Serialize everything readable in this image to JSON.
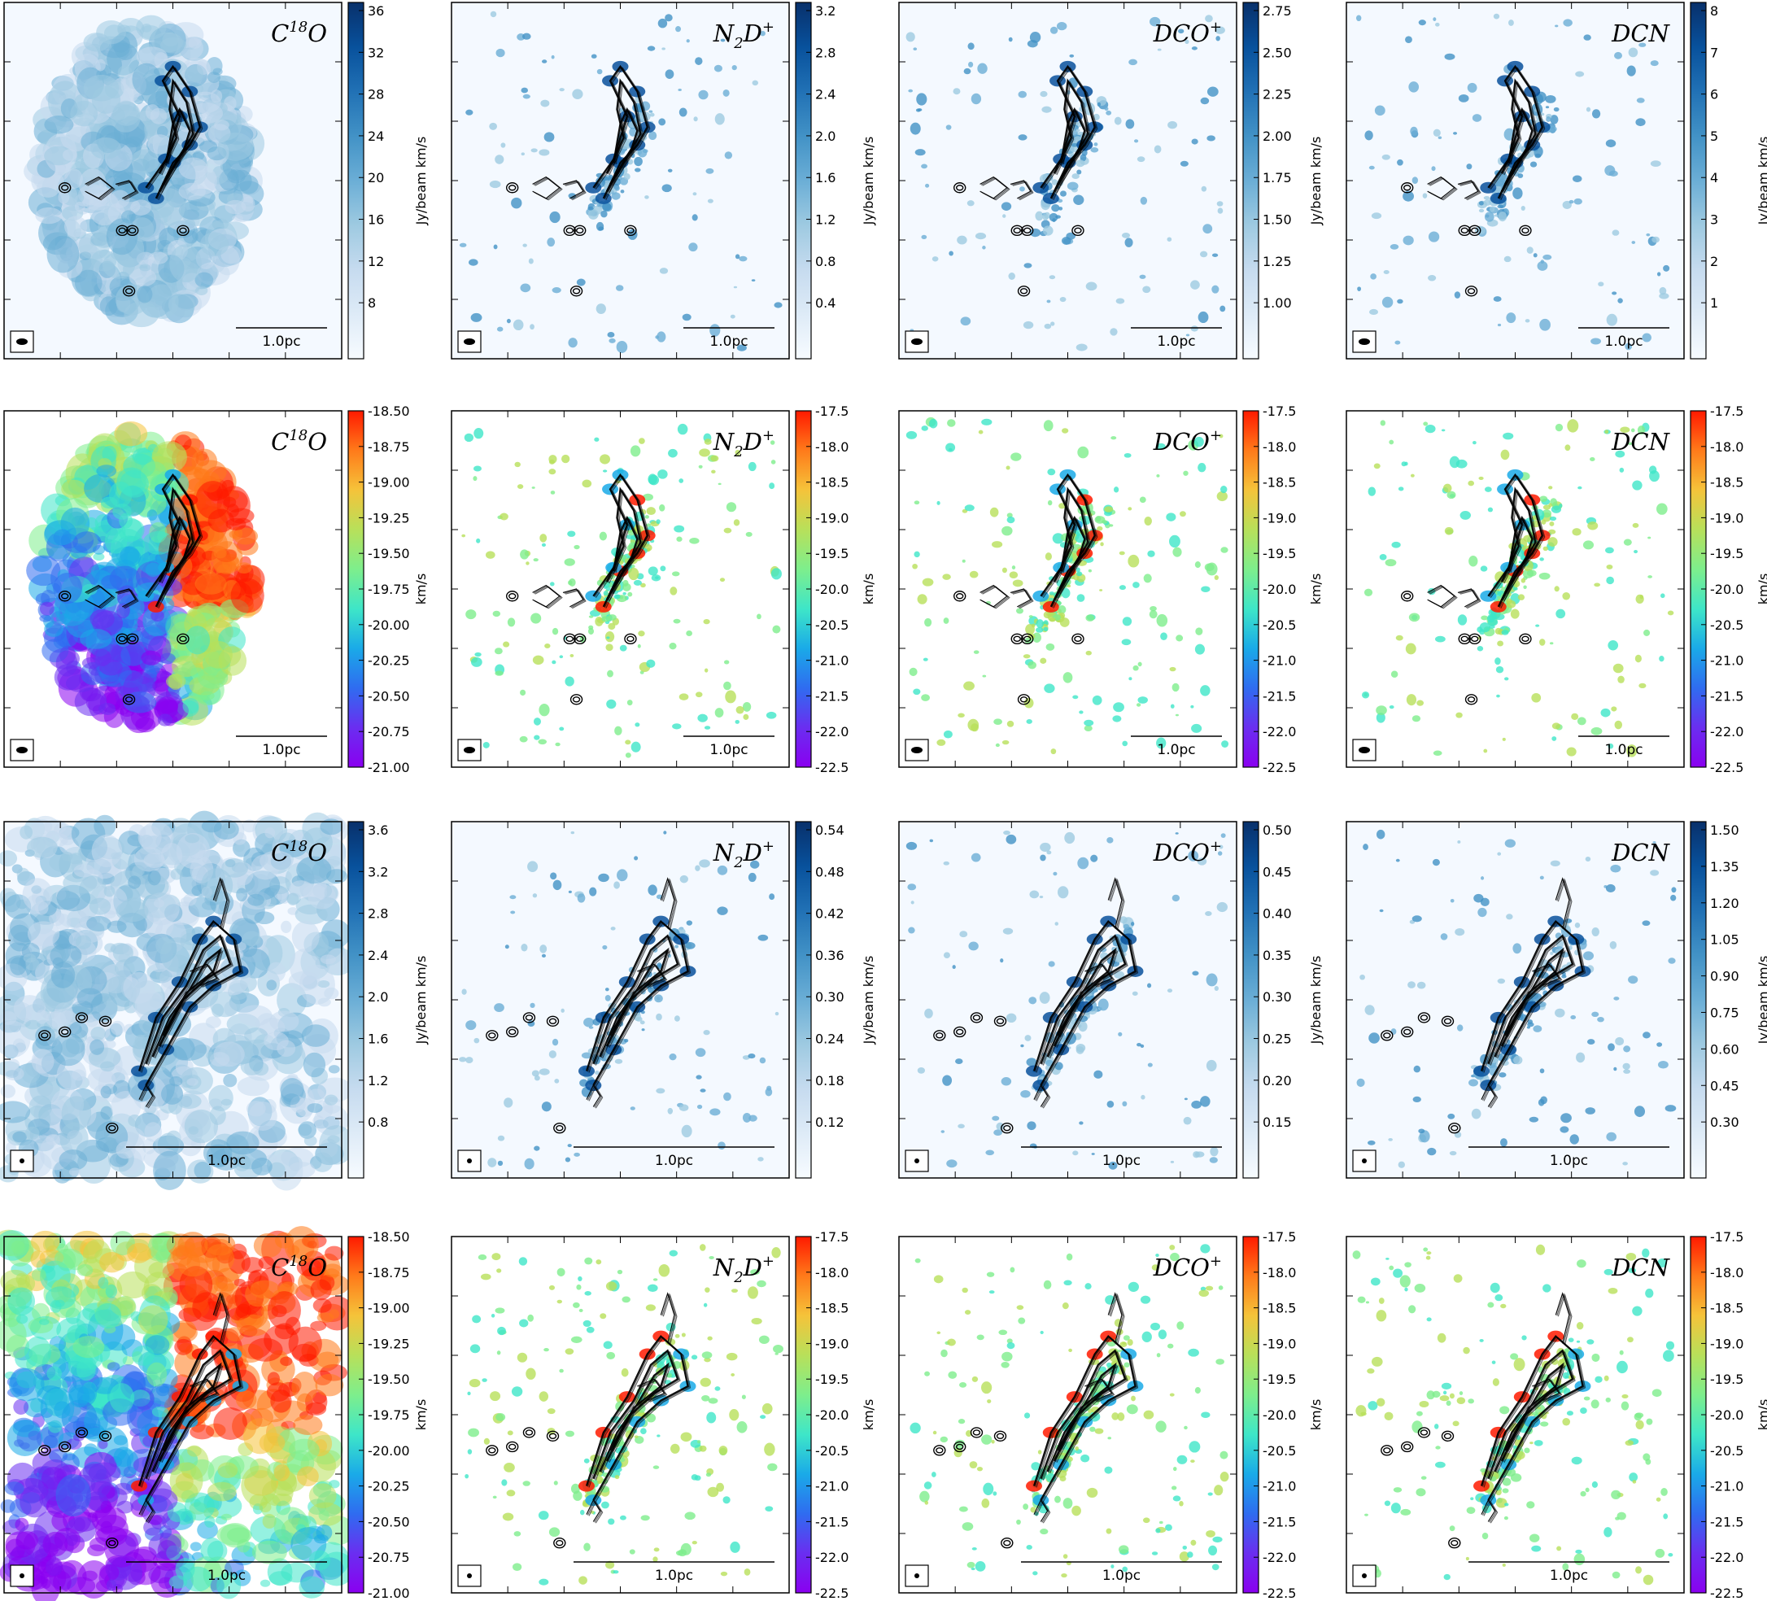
{
  "chart_data": {
    "type": "heatmap",
    "description": "4x4 grid of molecular-line maps (moment 0 and moment 1) with black continuum contours",
    "rows": [
      {
        "kind": "moment0",
        "colormap": "blues",
        "unit_label": "Jy/beam km/s",
        "panels": [
          {
            "molecule": "C18O",
            "label_main": "C",
            "label_sup": "18",
            "label_tail": "O",
            "cbar_ticks": [
              "36",
              "32",
              "28",
              "24",
              "20",
              "16",
              "12",
              "8"
            ]
          },
          {
            "molecule": "N2D+",
            "label_main": "N",
            "label_sub": "2",
            "label_tail": "D",
            "label_sup": "+",
            "cbar_ticks": [
              "3.2",
              "2.8",
              "2.4",
              "2.0",
              "1.6",
              "1.2",
              "0.8",
              "0.4"
            ]
          },
          {
            "molecule": "DCO+",
            "label_main": "DCO",
            "label_sup": "+",
            "cbar_ticks": [
              "2.75",
              "2.50",
              "2.25",
              "2.00",
              "1.75",
              "1.50",
              "1.25",
              "1.00"
            ]
          },
          {
            "molecule": "DCN",
            "label_main": "DCN",
            "cbar_ticks": [
              "8",
              "7",
              "6",
              "5",
              "4",
              "3",
              "2",
              "1"
            ]
          }
        ],
        "scale_bar": "1.0pc"
      },
      {
        "kind": "moment1",
        "colormap": "rainbow",
        "unit_label": "km/s",
        "panels": [
          {
            "molecule": "C18O",
            "label_main": "C",
            "label_sup": "18",
            "label_tail": "O",
            "cbar_ticks": [
              "-18.50",
              "-18.75",
              "-19.00",
              "-19.25",
              "-19.50",
              "-19.75",
              "-20.00",
              "-20.25",
              "-20.50",
              "-20.75",
              "-21.00"
            ]
          },
          {
            "molecule": "N2D+",
            "label_main": "N",
            "label_sub": "2",
            "label_tail": "D",
            "label_sup": "+",
            "cbar_ticks": [
              "-17.5",
              "-18.0",
              "-18.5",
              "-19.0",
              "-19.5",
              "-20.0",
              "-20.5",
              "-21.0",
              "-21.5",
              "-22.0",
              "-22.5"
            ]
          },
          {
            "molecule": "DCO+",
            "label_main": "DCO",
            "label_sup": "+",
            "cbar_ticks": [
              "-17.5",
              "-18.0",
              "-18.5",
              "-19.0",
              "-19.5",
              "-20.0",
              "-20.5",
              "-21.0",
              "-21.5",
              "-22.0",
              "-22.5"
            ]
          },
          {
            "molecule": "DCN",
            "label_main": "DCN",
            "cbar_ticks": [
              "-17.5",
              "-18.0",
              "-18.5",
              "-19.0",
              "-19.5",
              "-20.0",
              "-20.5",
              "-21.0",
              "-21.5",
              "-22.0",
              "-22.5"
            ]
          }
        ],
        "scale_bar": "1.0pc"
      },
      {
        "kind": "moment0",
        "colormap": "blues",
        "unit_label": "Jy/beam km/s",
        "panels": [
          {
            "molecule": "C18O",
            "label_main": "C",
            "label_sup": "18",
            "label_tail": "O",
            "cbar_ticks": [
              "3.6",
              "3.2",
              "2.8",
              "2.4",
              "2.0",
              "1.6",
              "1.2",
              "0.8"
            ]
          },
          {
            "molecule": "N2D+",
            "label_main": "N",
            "label_sub": "2",
            "label_tail": "D",
            "label_sup": "+",
            "cbar_ticks": [
              "0.54",
              "0.48",
              "0.42",
              "0.36",
              "0.30",
              "0.24",
              "0.18",
              "0.12"
            ]
          },
          {
            "molecule": "DCO+",
            "label_main": "DCO",
            "label_sup": "+",
            "cbar_ticks": [
              "0.50",
              "0.45",
              "0.40",
              "0.35",
              "0.30",
              "0.25",
              "0.20",
              "0.15"
            ]
          },
          {
            "molecule": "DCN",
            "label_main": "DCN",
            "cbar_ticks": [
              "1.50",
              "1.35",
              "1.20",
              "1.05",
              "0.90",
              "0.75",
              "0.60",
              "0.45",
              "0.30"
            ]
          }
        ],
        "scale_bar": "1.0pc"
      },
      {
        "kind": "moment1",
        "colormap": "rainbow",
        "unit_label": "km/s",
        "panels": [
          {
            "molecule": "C18O",
            "label_main": "C",
            "label_sup": "18",
            "label_tail": "O",
            "cbar_ticks": [
              "-18.50",
              "-18.75",
              "-19.00",
              "-19.25",
              "-19.50",
              "-19.75",
              "-20.00",
              "-20.25",
              "-20.50",
              "-20.75",
              "-21.00"
            ]
          },
          {
            "molecule": "N2D+",
            "label_main": "N",
            "label_sub": "2",
            "label_tail": "D",
            "label_sup": "+",
            "cbar_ticks": [
              "-17.5",
              "-18.0",
              "-18.5",
              "-19.0",
              "-19.5",
              "-20.0",
              "-20.5",
              "-21.0",
              "-21.5",
              "-22.0",
              "-22.5"
            ]
          },
          {
            "molecule": "DCO+",
            "label_main": "DCO",
            "label_sup": "+",
            "cbar_ticks": [
              "-17.5",
              "-18.0",
              "-18.5",
              "-19.0",
              "-19.5",
              "-20.0",
              "-20.5",
              "-21.0",
              "-21.5",
              "-22.0",
              "-22.5"
            ]
          },
          {
            "molecule": "DCN",
            "label_main": "DCN",
            "cbar_ticks": [
              "-17.5",
              "-18.0",
              "-18.5",
              "-19.0",
              "-19.5",
              "-20.0",
              "-20.5",
              "-21.0",
              "-21.5",
              "-22.0",
              "-22.5"
            ]
          }
        ],
        "scale_bar": "1.0pc"
      }
    ],
    "colors": {
      "blues": [
        "#f7fbff",
        "#deebf7",
        "#c6dbef",
        "#9ecae1",
        "#6baed6",
        "#4292c6",
        "#2171b5",
        "#08519c",
        "#08306b"
      ],
      "rainbow": [
        "#ff1a00",
        "#ff7a1a",
        "#f5c33a",
        "#b8e05a",
        "#7eee8c",
        "#3ee6c8",
        "#1aaae8",
        "#2f6cf0",
        "#6a2ef0",
        "#8a00f0"
      ],
      "contour": "#000000"
    }
  }
}
